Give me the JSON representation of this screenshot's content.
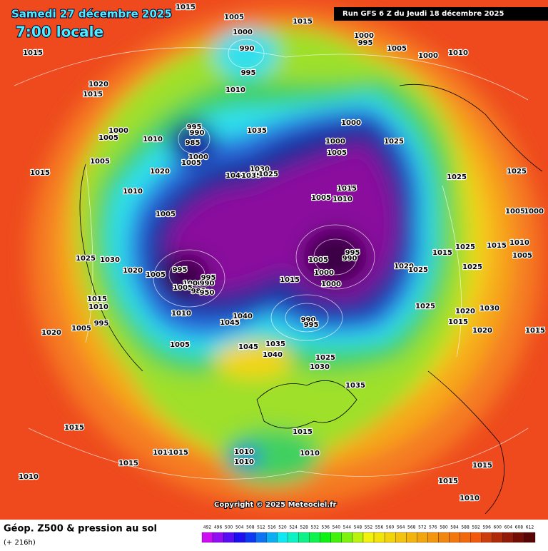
{
  "header": {
    "date": "Samedi 27 décembre 2025",
    "time": "7:00 locale",
    "run": "Run GFS 6 Z du Jeudi 18 décembre 2025"
  },
  "footer": {
    "title": "Géop. Z500 & pression au sol",
    "lead": "(+ 216h)",
    "copyright": "Copyright © 2025 Meteociel.fr"
  },
  "scale": [
    492,
    496,
    500,
    504,
    508,
    512,
    516,
    520,
    524,
    528,
    532,
    536,
    540,
    544,
    548,
    552,
    556,
    560,
    564,
    568,
    572,
    576,
    580,
    584,
    588,
    592,
    596,
    600,
    604,
    608,
    612
  ],
  "pressure_labels": [
    "1015",
    "1005",
    "1015",
    "1000",
    "1000",
    "995",
    "1005",
    "1000",
    "1010",
    "990",
    "995",
    "1015",
    "1020",
    "1015",
    "1010",
    "1035",
    "1000",
    "1005",
    "1010",
    "995",
    "990",
    "985",
    "1000",
    "1005",
    "1020",
    "1015",
    "1005",
    "1000",
    "1000",
    "1005",
    "1025",
    "1040",
    "1030",
    "1035",
    "1025",
    "1025",
    "1025",
    "1015",
    "1010",
    "1005",
    "1010",
    "1005",
    "1005",
    "1000",
    "1025",
    "1030",
    "995",
    "1020",
    "1005",
    "1005",
    "995",
    "990",
    "1000",
    "1000",
    "1015",
    "1025",
    "1015",
    "1010",
    "1005",
    "1020",
    "1025",
    "1025",
    "995",
    "1000",
    "990",
    "1005",
    "985",
    "950",
    "1015",
    "1015",
    "1010",
    "1010",
    "1040",
    "1045",
    "995",
    "1005",
    "1005",
    "990",
    "995",
    "1025",
    "1020",
    "1030",
    "1015",
    "1020",
    "1020",
    "1015",
    "1045",
    "1035",
    "1040",
    "1025",
    "1030",
    "1035",
    "1015",
    "1015",
    "1010",
    "1010",
    "1010",
    "1010",
    "1015",
    "1015",
    "1010",
    "1015",
    "1015",
    "1010"
  ]
}
